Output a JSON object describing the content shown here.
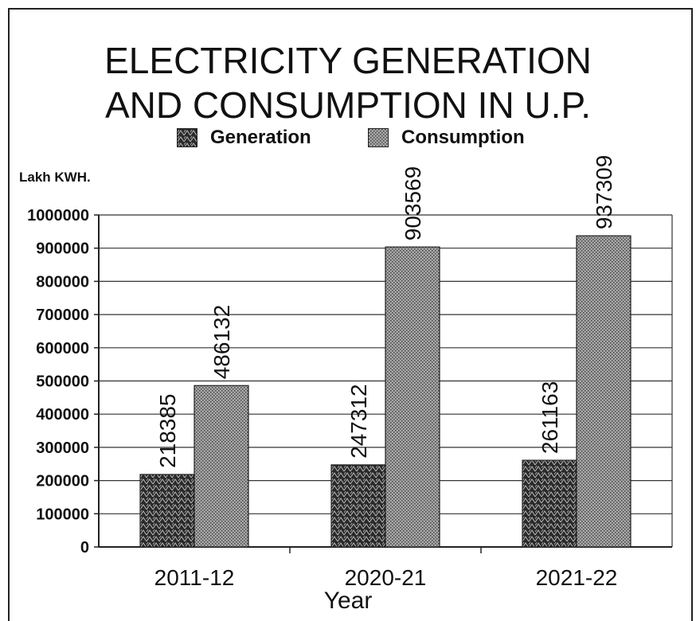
{
  "chart_data": {
    "type": "bar",
    "title_lines": [
      "ELECTRICITY GENERATION",
      "AND CONSUMPTION IN U.P."
    ],
    "ylabel": "Lakh KWH.",
    "xlabel": "Year",
    "categories": [
      "2011-12",
      "2020-21",
      "2021-22"
    ],
    "series": [
      {
        "name": "Generation",
        "values": [
          218385,
          247312,
          261163
        ],
        "color": "#1a1a1a"
      },
      {
        "name": "Consumption",
        "values": [
          486132,
          903569,
          937309
        ],
        "color": "#9a9a9a"
      }
    ],
    "ylim": [
      0,
      1000000
    ],
    "yticks": [
      0,
      100000,
      200000,
      300000,
      400000,
      500000,
      600000,
      700000,
      800000,
      900000,
      1000000
    ],
    "grid": true,
    "legend": "top-center",
    "data_labels": true
  }
}
